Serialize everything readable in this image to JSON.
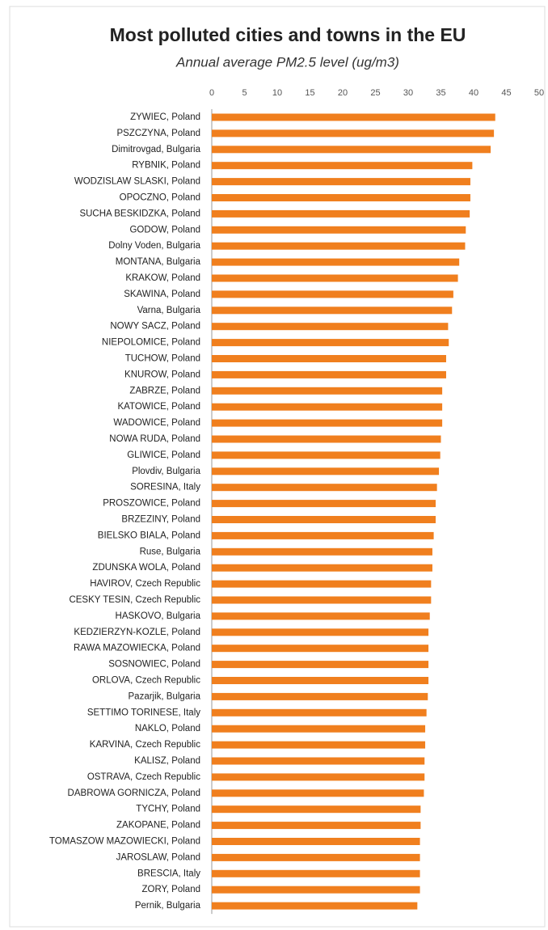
{
  "chart_data": {
    "type": "barh",
    "title": "Most polluted cities and towns in the EU",
    "subtitle": "Annual average PM2.5 level (ug/m3)",
    "categories": [
      "ZYWIEC, Poland",
      "PSZCZYNA, Poland",
      "Dimitrovgad, Bulgaria",
      "RYBNIK, Poland",
      "WODZISLAW SLASKI, Poland",
      "OPOCZNO, Poland",
      "SUCHA BESKIDZKA, Poland",
      "GODOW, Poland",
      "Dolny Voden, Bulgaria",
      "MONTANA, Bulgaria",
      "KRAKOW, Poland",
      "SKAWINA, Poland",
      "Varna, Bulgaria",
      "NOWY SACZ, Poland",
      "NIEPOLOMICE, Poland",
      "TUCHOW, Poland",
      "KNUROW, Poland",
      "ZABRZE, Poland",
      "KATOWICE, Poland",
      "WADOWICE, Poland",
      "NOWA RUDA, Poland",
      "GLIWICE, Poland",
      "Plovdiv, Bulgaria",
      "SORESINA, Italy",
      "PROSZOWICE, Poland",
      "BRZEZINY, Poland",
      "BIELSKO BIALA, Poland",
      "Ruse, Bulgaria",
      "ZDUNSKA WOLA, Poland",
      "HAVIROV, Czech Republic",
      "CESKY TESIN, Czech Republic",
      "HASKOVO, Bulgaria",
      "KEDZIERZYN-KOZLE, Poland",
      "RAWA MAZOWIECKA, Poland",
      "SOSNOWIEC, Poland",
      "ORLOVA, Czech Republic",
      "Pazarjik, Bulgaria",
      "SETTIMO TORINESE, Italy",
      "NAKLO, Poland",
      "KARVINA, Czech Republic",
      "KALISZ, Poland",
      "OSTRAVA, Czech Republic",
      "DABROWA GORNICZA, Poland",
      "TYCHY, Poland",
      "ZAKOPANE, Poland",
      "TOMASZOW MAZOWIECKI, Poland",
      "JAROSLAW, Poland",
      "BRESCIA, Italy",
      "ZORY, Poland",
      "Pernik, Bulgaria"
    ],
    "values": [
      43.3,
      43.1,
      42.6,
      39.8,
      39.5,
      39.5,
      39.4,
      38.8,
      38.7,
      37.8,
      37.6,
      36.9,
      36.7,
      36.1,
      36.2,
      35.8,
      35.8,
      35.2,
      35.2,
      35.2,
      35.0,
      34.9,
      34.7,
      34.4,
      34.2,
      34.2,
      33.9,
      33.7,
      33.7,
      33.5,
      33.5,
      33.3,
      33.1,
      33.1,
      33.1,
      33.1,
      33.0,
      32.8,
      32.6,
      32.6,
      32.5,
      32.5,
      32.4,
      31.9,
      31.9,
      31.8,
      31.8,
      31.8,
      31.8,
      31.4
    ],
    "color": "#f07f1e",
    "xlim": [
      0,
      50
    ],
    "xticks": [
      0,
      5,
      10,
      15,
      20,
      25,
      30,
      35,
      40,
      45,
      50
    ]
  }
}
